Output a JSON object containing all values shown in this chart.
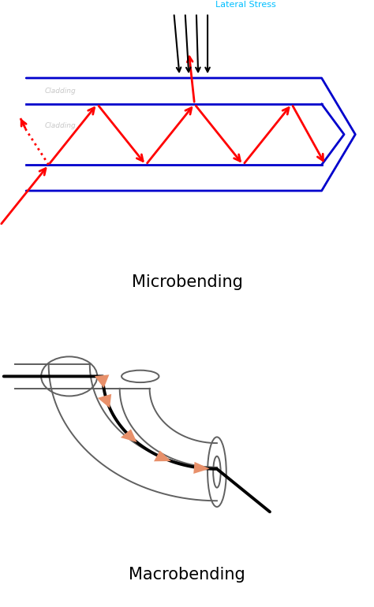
{
  "title1": "Microbending",
  "title2": "Macrobending",
  "lateral_stress_label": "Lateral Stress",
  "lateral_stress_color": "#00BFFF",
  "fiber_color": "#0000CC",
  "ray_color": "#FF0000",
  "arrow_color": "#000000",
  "tube_color": "#606060",
  "salmon_color": "#E8906A",
  "fig_bg": "#FFFFFF"
}
